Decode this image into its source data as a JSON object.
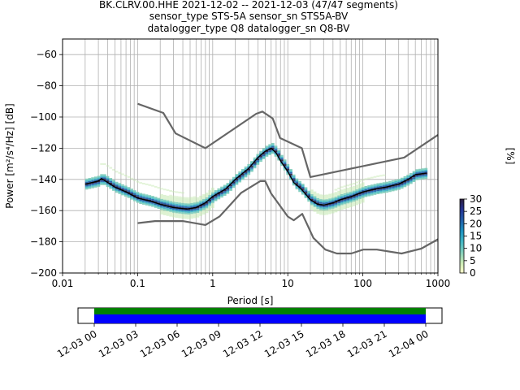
{
  "title_lines": [
    "BK.CLRV.00.HHE   2021-12-02 -- 2021-12-03  (47/47 segments)",
    "sensor_type STS-5A sensor_sn STS5A-BV",
    "datalogger_type Q8 datalogger_sn Q8-BV"
  ],
  "chart_data": {
    "type": "heatmap",
    "xlabel": "Period [s]",
    "ylabel": "Power [m²/s⁴/Hz] [dB]",
    "x_scale": "log",
    "xlim": [
      0.01,
      1000
    ],
    "ylim": [
      -200,
      -50
    ],
    "x_ticks": [
      0.01,
      0.1,
      1,
      10,
      100,
      1000
    ],
    "x_tick_labels": [
      "0.01",
      "0.1",
      "1",
      "10",
      "100",
      "1000"
    ],
    "y_ticks": [
      -200,
      -180,
      -160,
      -140,
      -120,
      -100,
      -80,
      -60
    ],
    "y_tick_labels": [
      "−200",
      "−180",
      "−160",
      "−140",
      "−120",
      "−100",
      "−80",
      "−60"
    ],
    "grid": true,
    "colorbar": {
      "label": "[%]",
      "range": [
        0,
        30
      ],
      "ticks": [
        0,
        5,
        10,
        15,
        20,
        25,
        30
      ],
      "colors": [
        "#ffffcc",
        "#c7e9b4",
        "#7fcdbb",
        "#41b6c4",
        "#1d91c0",
        "#225ea8",
        "#253494",
        "#2d1e3e"
      ]
    },
    "mode_curve": [
      [
        0.02,
        -143
      ],
      [
        0.025,
        -142
      ],
      [
        0.03,
        -141
      ],
      [
        0.033,
        -139.5
      ],
      [
        0.04,
        -142
      ],
      [
        0.05,
        -145
      ],
      [
        0.07,
        -148
      ],
      [
        0.1,
        -152
      ],
      [
        0.15,
        -154
      ],
      [
        0.2,
        -156
      ],
      [
        0.3,
        -158
      ],
      [
        0.45,
        -159
      ],
      [
        0.6,
        -158
      ],
      [
        0.8,
        -155
      ],
      [
        1,
        -151
      ],
      [
        1.5,
        -146
      ],
      [
        2,
        -140
      ],
      [
        3,
        -133
      ],
      [
        4,
        -126
      ],
      [
        5,
        -122
      ],
      [
        6,
        -120
      ],
      [
        7,
        -123
      ],
      [
        8,
        -128
      ],
      [
        10,
        -135
      ],
      [
        12,
        -142
      ],
      [
        15,
        -146
      ],
      [
        20,
        -153
      ],
      [
        25,
        -156
      ],
      [
        30,
        -156.5
      ],
      [
        40,
        -155
      ],
      [
        50,
        -153
      ],
      [
        70,
        -151
      ],
      [
        100,
        -148
      ],
      [
        150,
        -146
      ],
      [
        200,
        -145
      ],
      [
        300,
        -143
      ],
      [
        400,
        -140
      ],
      [
        500,
        -137
      ],
      [
        700,
        -136
      ]
    ],
    "nhnm": [
      [
        0.1,
        -91.5
      ],
      [
        0.22,
        -97.4
      ],
      [
        0.32,
        -110.5
      ],
      [
        0.8,
        -120
      ],
      [
        3.8,
        -97.9
      ],
      [
        4.6,
        -96.5
      ],
      [
        6.3,
        -101
      ],
      [
        7.9,
        -113.5
      ],
      [
        15.4,
        -120
      ],
      [
        20,
        -138.5
      ],
      [
        354.8,
        -126
      ],
      [
        1000,
        -111.5
      ]
    ],
    "nlnm": [
      [
        0.1,
        -168
      ],
      [
        0.17,
        -166.7
      ],
      [
        0.4,
        -166.7
      ],
      [
        0.8,
        -169.2
      ],
      [
        1.24,
        -163.7
      ],
      [
        2.4,
        -148.6
      ],
      [
        4.3,
        -141.1
      ],
      [
        5,
        -141.1
      ],
      [
        6,
        -149
      ],
      [
        10,
        -163.8
      ],
      [
        12,
        -166.2
      ],
      [
        15.6,
        -162.1
      ],
      [
        21.9,
        -177.5
      ],
      [
        31.6,
        -185
      ],
      [
        45,
        -187.5
      ],
      [
        70,
        -187.5
      ],
      [
        101,
        -185
      ],
      [
        154,
        -185
      ],
      [
        328,
        -187.5
      ],
      [
        600,
        -184.4
      ],
      [
        1000,
        -178.4
      ]
    ],
    "timeline": {
      "tick_labels": [
        "12-03 00",
        "12-03 03",
        "12-03 06",
        "12-03 09",
        "12-03 12",
        "12-03 15",
        "12-03 18",
        "12-03 21",
        "12-04 00"
      ],
      "coverage_colors": [
        "#008000",
        "#0000ff"
      ]
    }
  }
}
